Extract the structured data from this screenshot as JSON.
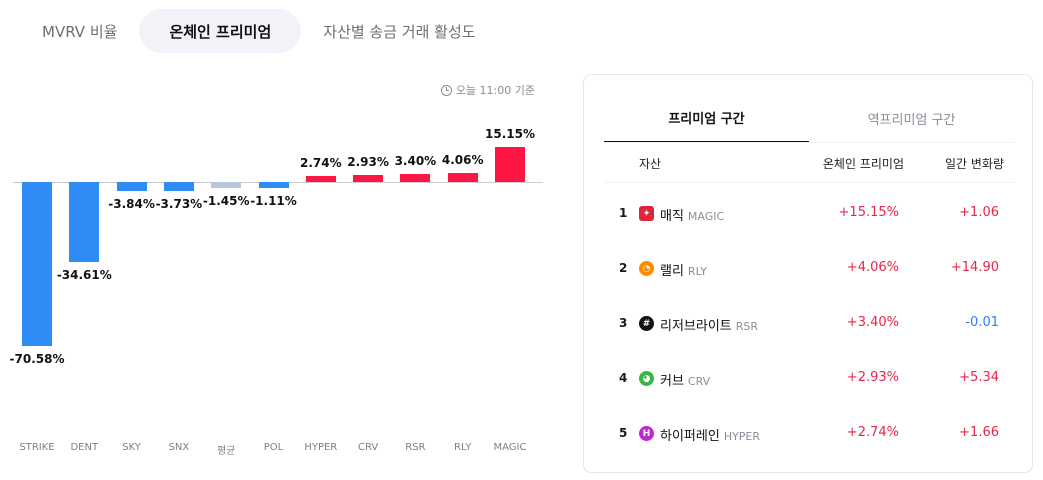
{
  "tabs": [
    "MVRV 비율",
    "온체인 프리미엄",
    "자산별 송금 거래 활성도"
  ],
  "active_tab": 1,
  "basis_text": "오늘 11:00 기준",
  "chart_data": {
    "type": "bar",
    "categories": [
      "STRIKE",
      "DENT",
      "SKY",
      "SNX",
      "평균",
      "POL",
      "HYPER",
      "CRV",
      "RSR",
      "RLY",
      "MAGIC"
    ],
    "values": [
      -70.58,
      -34.61,
      -3.84,
      -3.73,
      -1.45,
      -1.11,
      2.74,
      2.93,
      3.4,
      4.06,
      15.15
    ],
    "value_labels": [
      "-70.58%",
      "-34.61%",
      "-3.84%",
      "-3.73%",
      "-1.45%",
      "-1.11%",
      "2.74%",
      "2.93%",
      "3.40%",
      "4.06%",
      "15.15%"
    ],
    "colors": {
      "negative": "#2e8cf5",
      "positive": "#ff1744",
      "average": "#b8c8dc"
    },
    "average_index": 4
  },
  "panel": {
    "tabs": [
      "프리미엄 구간",
      "역프리미엄 구간"
    ],
    "active_tab": 0,
    "headers": {
      "asset": "자산",
      "premium": "온체인 프리미엄",
      "change": "일간 변화량"
    },
    "rows": [
      {
        "rank": "1",
        "name": "매직",
        "ticker": "MAGIC",
        "premium": "+15.15%",
        "change": "+1.06",
        "change_dir": "up",
        "icon": "magic-icon",
        "icon_color": "#e0243c",
        "icon_glyph": "✦"
      },
      {
        "rank": "2",
        "name": "랠리",
        "ticker": "RLY",
        "premium": "+4.06%",
        "change": "+14.90",
        "change_dir": "up",
        "icon": "rally-icon",
        "icon_color": "#ff8a00",
        "icon_glyph": "◔"
      },
      {
        "rank": "3",
        "name": "리저브라이트",
        "ticker": "RSR",
        "premium": "+3.40%",
        "change": "-0.01",
        "change_dir": "down",
        "icon": "reserve-rights-icon",
        "icon_color": "#111111",
        "icon_glyph": "#"
      },
      {
        "rank": "4",
        "name": "커브",
        "ticker": "CRV",
        "premium": "+2.93%",
        "change": "+5.34",
        "change_dir": "up",
        "icon": "curve-icon",
        "icon_color": "#39b54a",
        "icon_glyph": "◕"
      },
      {
        "rank": "5",
        "name": "하이퍼레인",
        "ticker": "HYPER",
        "premium": "+2.74%",
        "change": "+1.66",
        "change_dir": "up",
        "icon": "hyperlane-icon",
        "icon_color": "#c026d3",
        "icon_glyph": "H"
      }
    ]
  }
}
